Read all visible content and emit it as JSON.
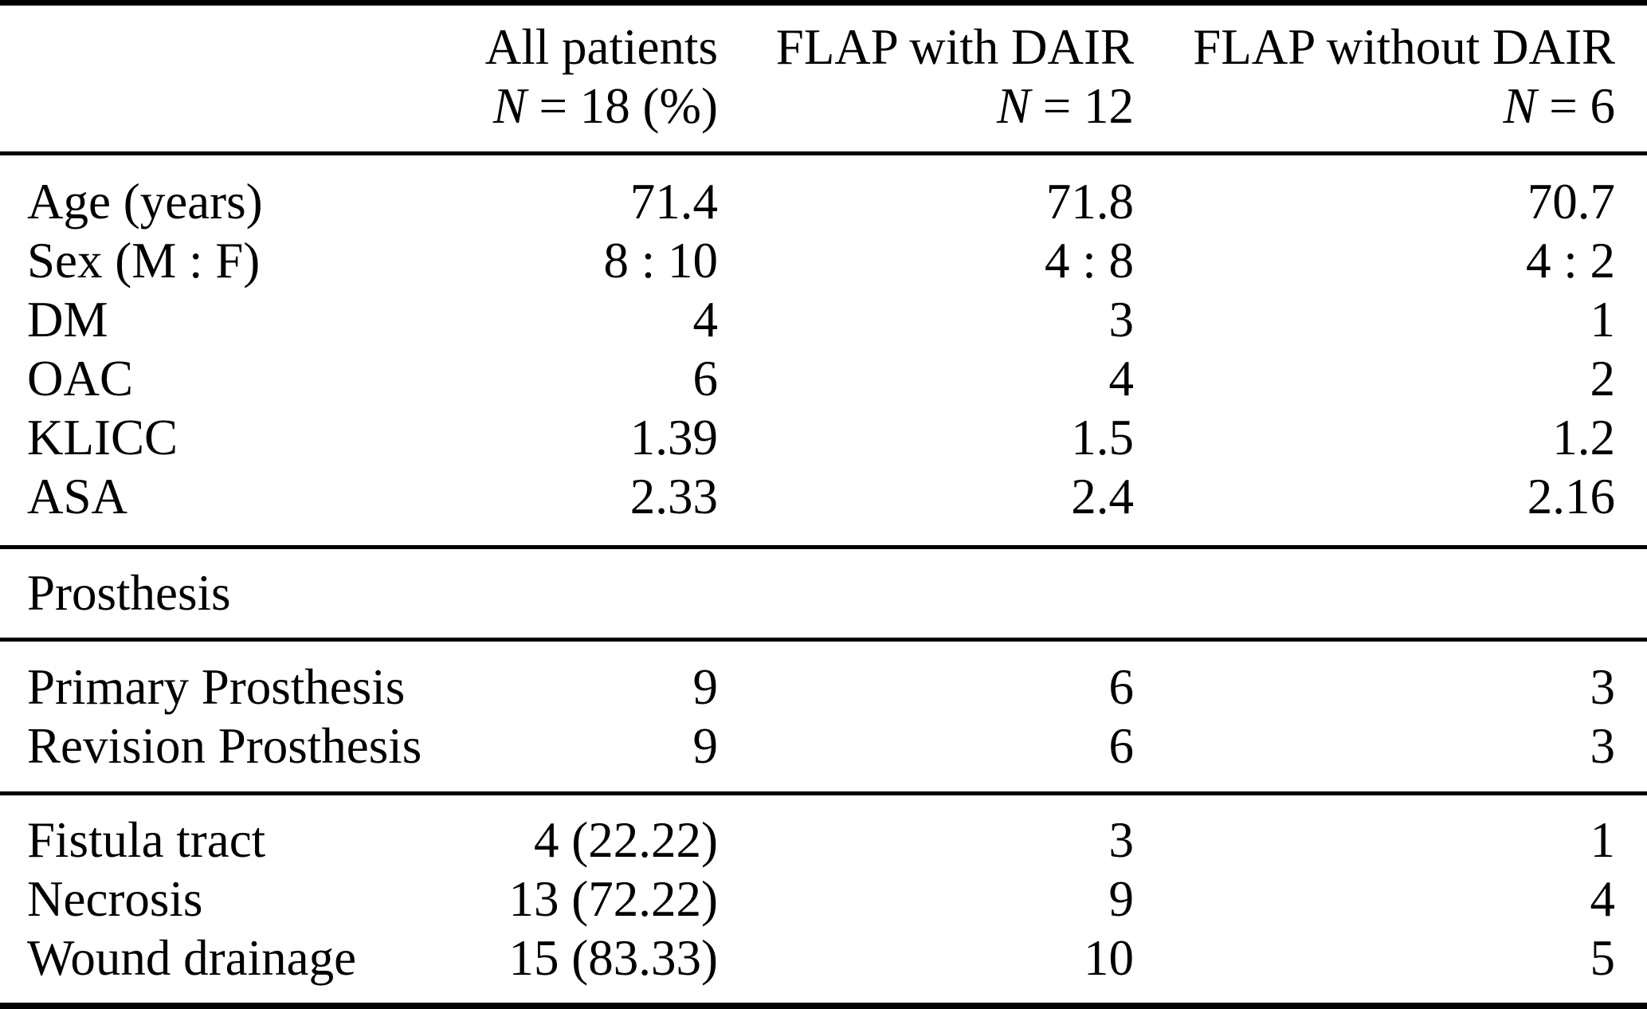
{
  "colors": {
    "text": "#000000",
    "background": "#ffffff",
    "rule": "#000000"
  },
  "header": {
    "row_label_column": "",
    "columns": [
      {
        "title": "All patients",
        "n_italic": "N",
        "n_rest": " = 18 (%)"
      },
      {
        "title": "FLAP with DAIR",
        "n_italic": "N",
        "n_rest": " = 12"
      },
      {
        "title": "FLAP without DAIR",
        "n_italic": "N",
        "n_rest": " = 6"
      }
    ]
  },
  "body": {
    "rows_demographics": [
      [
        "Age (years)",
        "71.4",
        "71.8",
        "70.7"
      ],
      [
        "Sex (M : F)",
        "8 : 10",
        "4 : 8",
        "4 : 2"
      ],
      [
        "DM",
        "4",
        "3",
        "1"
      ],
      [
        "OAC",
        "6",
        "4",
        "2"
      ],
      [
        "KLICC",
        "1.39",
        "1.5",
        "1.2"
      ],
      [
        "ASA",
        "2.33",
        "2.4",
        "2.16"
      ]
    ],
    "section_label": "Prosthesis",
    "rows_prosthesis": [
      [
        "Primary Prosthesis",
        "9",
        "6",
        "3"
      ],
      [
        "Revision Prosthesis",
        "9",
        "6",
        "3"
      ]
    ],
    "rows_wound": [
      [
        "Fistula tract",
        "4 (22.22)",
        "3",
        "1"
      ],
      [
        "Necrosis",
        "13 (72.22)",
        "9",
        "4"
      ],
      [
        "Wound drainage",
        "15 (83.33)",
        "10",
        "5"
      ]
    ]
  }
}
